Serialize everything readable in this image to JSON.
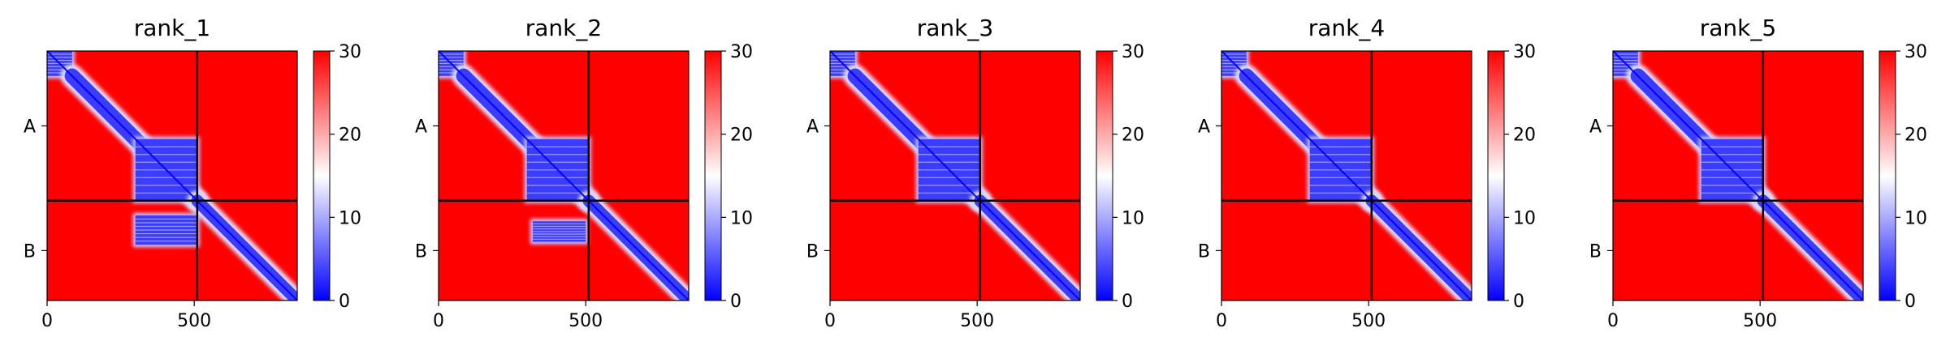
{
  "chart_data": [
    {
      "type": "heatmap",
      "title": "rank_1",
      "x_ticks": [
        0,
        500
      ],
      "y_tick_labels": [
        "A",
        "B"
      ],
      "matrix_size": 850,
      "chain_boundary": 510,
      "color_range": [
        0,
        30
      ],
      "colorbar_ticks": [
        0,
        10,
        20,
        30
      ],
      "colormap": [
        "#0000ff",
        "#ffffff",
        "#ff0000"
      ],
      "blue_regions": [
        {
          "x": [
            0,
            85
          ],
          "y": [
            0,
            85
          ],
          "kind": "block"
        },
        {
          "x": [
            85,
            510
          ],
          "y": [
            85,
            510
          ],
          "kind": "diagonal"
        },
        {
          "x": [
            300,
            510
          ],
          "y": [
            300,
            510
          ],
          "kind": "block"
        },
        {
          "x": [
            300,
            510
          ],
          "y": [
            560,
            660
          ],
          "kind": "block"
        },
        {
          "x": [
            510,
            850
          ],
          "y": [
            510,
            850
          ],
          "kind": "diagonal"
        }
      ]
    },
    {
      "type": "heatmap",
      "title": "rank_2",
      "x_ticks": [
        0,
        500
      ],
      "y_tick_labels": [
        "A",
        "B"
      ],
      "matrix_size": 850,
      "chain_boundary": 510,
      "color_range": [
        0,
        30
      ],
      "colorbar_ticks": [
        0,
        10,
        20,
        30
      ],
      "colormap": [
        "#0000ff",
        "#ffffff",
        "#ff0000"
      ],
      "blue_regions": [
        {
          "x": [
            0,
            85
          ],
          "y": [
            0,
            85
          ],
          "kind": "block"
        },
        {
          "x": [
            85,
            510
          ],
          "y": [
            85,
            510
          ],
          "kind": "diagonal"
        },
        {
          "x": [
            300,
            510
          ],
          "y": [
            300,
            510
          ],
          "kind": "block"
        },
        {
          "x": [
            320,
            500
          ],
          "y": [
            580,
            650
          ],
          "kind": "block"
        },
        {
          "x": [
            510,
            850
          ],
          "y": [
            510,
            850
          ],
          "kind": "diagonal"
        }
      ]
    },
    {
      "type": "heatmap",
      "title": "rank_3",
      "x_ticks": [
        0,
        500
      ],
      "y_tick_labels": [
        "A",
        "B"
      ],
      "matrix_size": 850,
      "chain_boundary": 510,
      "color_range": [
        0,
        30
      ],
      "colorbar_ticks": [
        0,
        10,
        20,
        30
      ],
      "colormap": [
        "#0000ff",
        "#ffffff",
        "#ff0000"
      ],
      "blue_regions": [
        {
          "x": [
            0,
            85
          ],
          "y": [
            0,
            85
          ],
          "kind": "block"
        },
        {
          "x": [
            85,
            510
          ],
          "y": [
            85,
            510
          ],
          "kind": "diagonal"
        },
        {
          "x": [
            300,
            510
          ],
          "y": [
            300,
            510
          ],
          "kind": "block"
        },
        {
          "x": [
            510,
            850
          ],
          "y": [
            510,
            850
          ],
          "kind": "diagonal"
        }
      ]
    },
    {
      "type": "heatmap",
      "title": "rank_4",
      "x_ticks": [
        0,
        500
      ],
      "y_tick_labels": [
        "A",
        "B"
      ],
      "matrix_size": 850,
      "chain_boundary": 510,
      "color_range": [
        0,
        30
      ],
      "colorbar_ticks": [
        0,
        10,
        20,
        30
      ],
      "colormap": [
        "#0000ff",
        "#ffffff",
        "#ff0000"
      ],
      "blue_regions": [
        {
          "x": [
            0,
            85
          ],
          "y": [
            0,
            85
          ],
          "kind": "block"
        },
        {
          "x": [
            85,
            510
          ],
          "y": [
            85,
            510
          ],
          "kind": "diagonal"
        },
        {
          "x": [
            300,
            510
          ],
          "y": [
            300,
            510
          ],
          "kind": "block"
        },
        {
          "x": [
            510,
            850
          ],
          "y": [
            510,
            850
          ],
          "kind": "diagonal"
        }
      ]
    },
    {
      "type": "heatmap",
      "title": "rank_5",
      "x_ticks": [
        0,
        500
      ],
      "y_tick_labels": [
        "A",
        "B"
      ],
      "matrix_size": 850,
      "chain_boundary": 510,
      "color_range": [
        0,
        30
      ],
      "colorbar_ticks": [
        0,
        10,
        20,
        30
      ],
      "colormap": [
        "#0000ff",
        "#ffffff",
        "#ff0000"
      ],
      "blue_regions": [
        {
          "x": [
            0,
            85
          ],
          "y": [
            0,
            85
          ],
          "kind": "block"
        },
        {
          "x": [
            85,
            510
          ],
          "y": [
            85,
            510
          ],
          "kind": "diagonal"
        },
        {
          "x": [
            300,
            510
          ],
          "y": [
            300,
            510
          ],
          "kind": "block"
        },
        {
          "x": [
            510,
            850
          ],
          "y": [
            510,
            850
          ],
          "kind": "diagonal"
        }
      ]
    }
  ]
}
